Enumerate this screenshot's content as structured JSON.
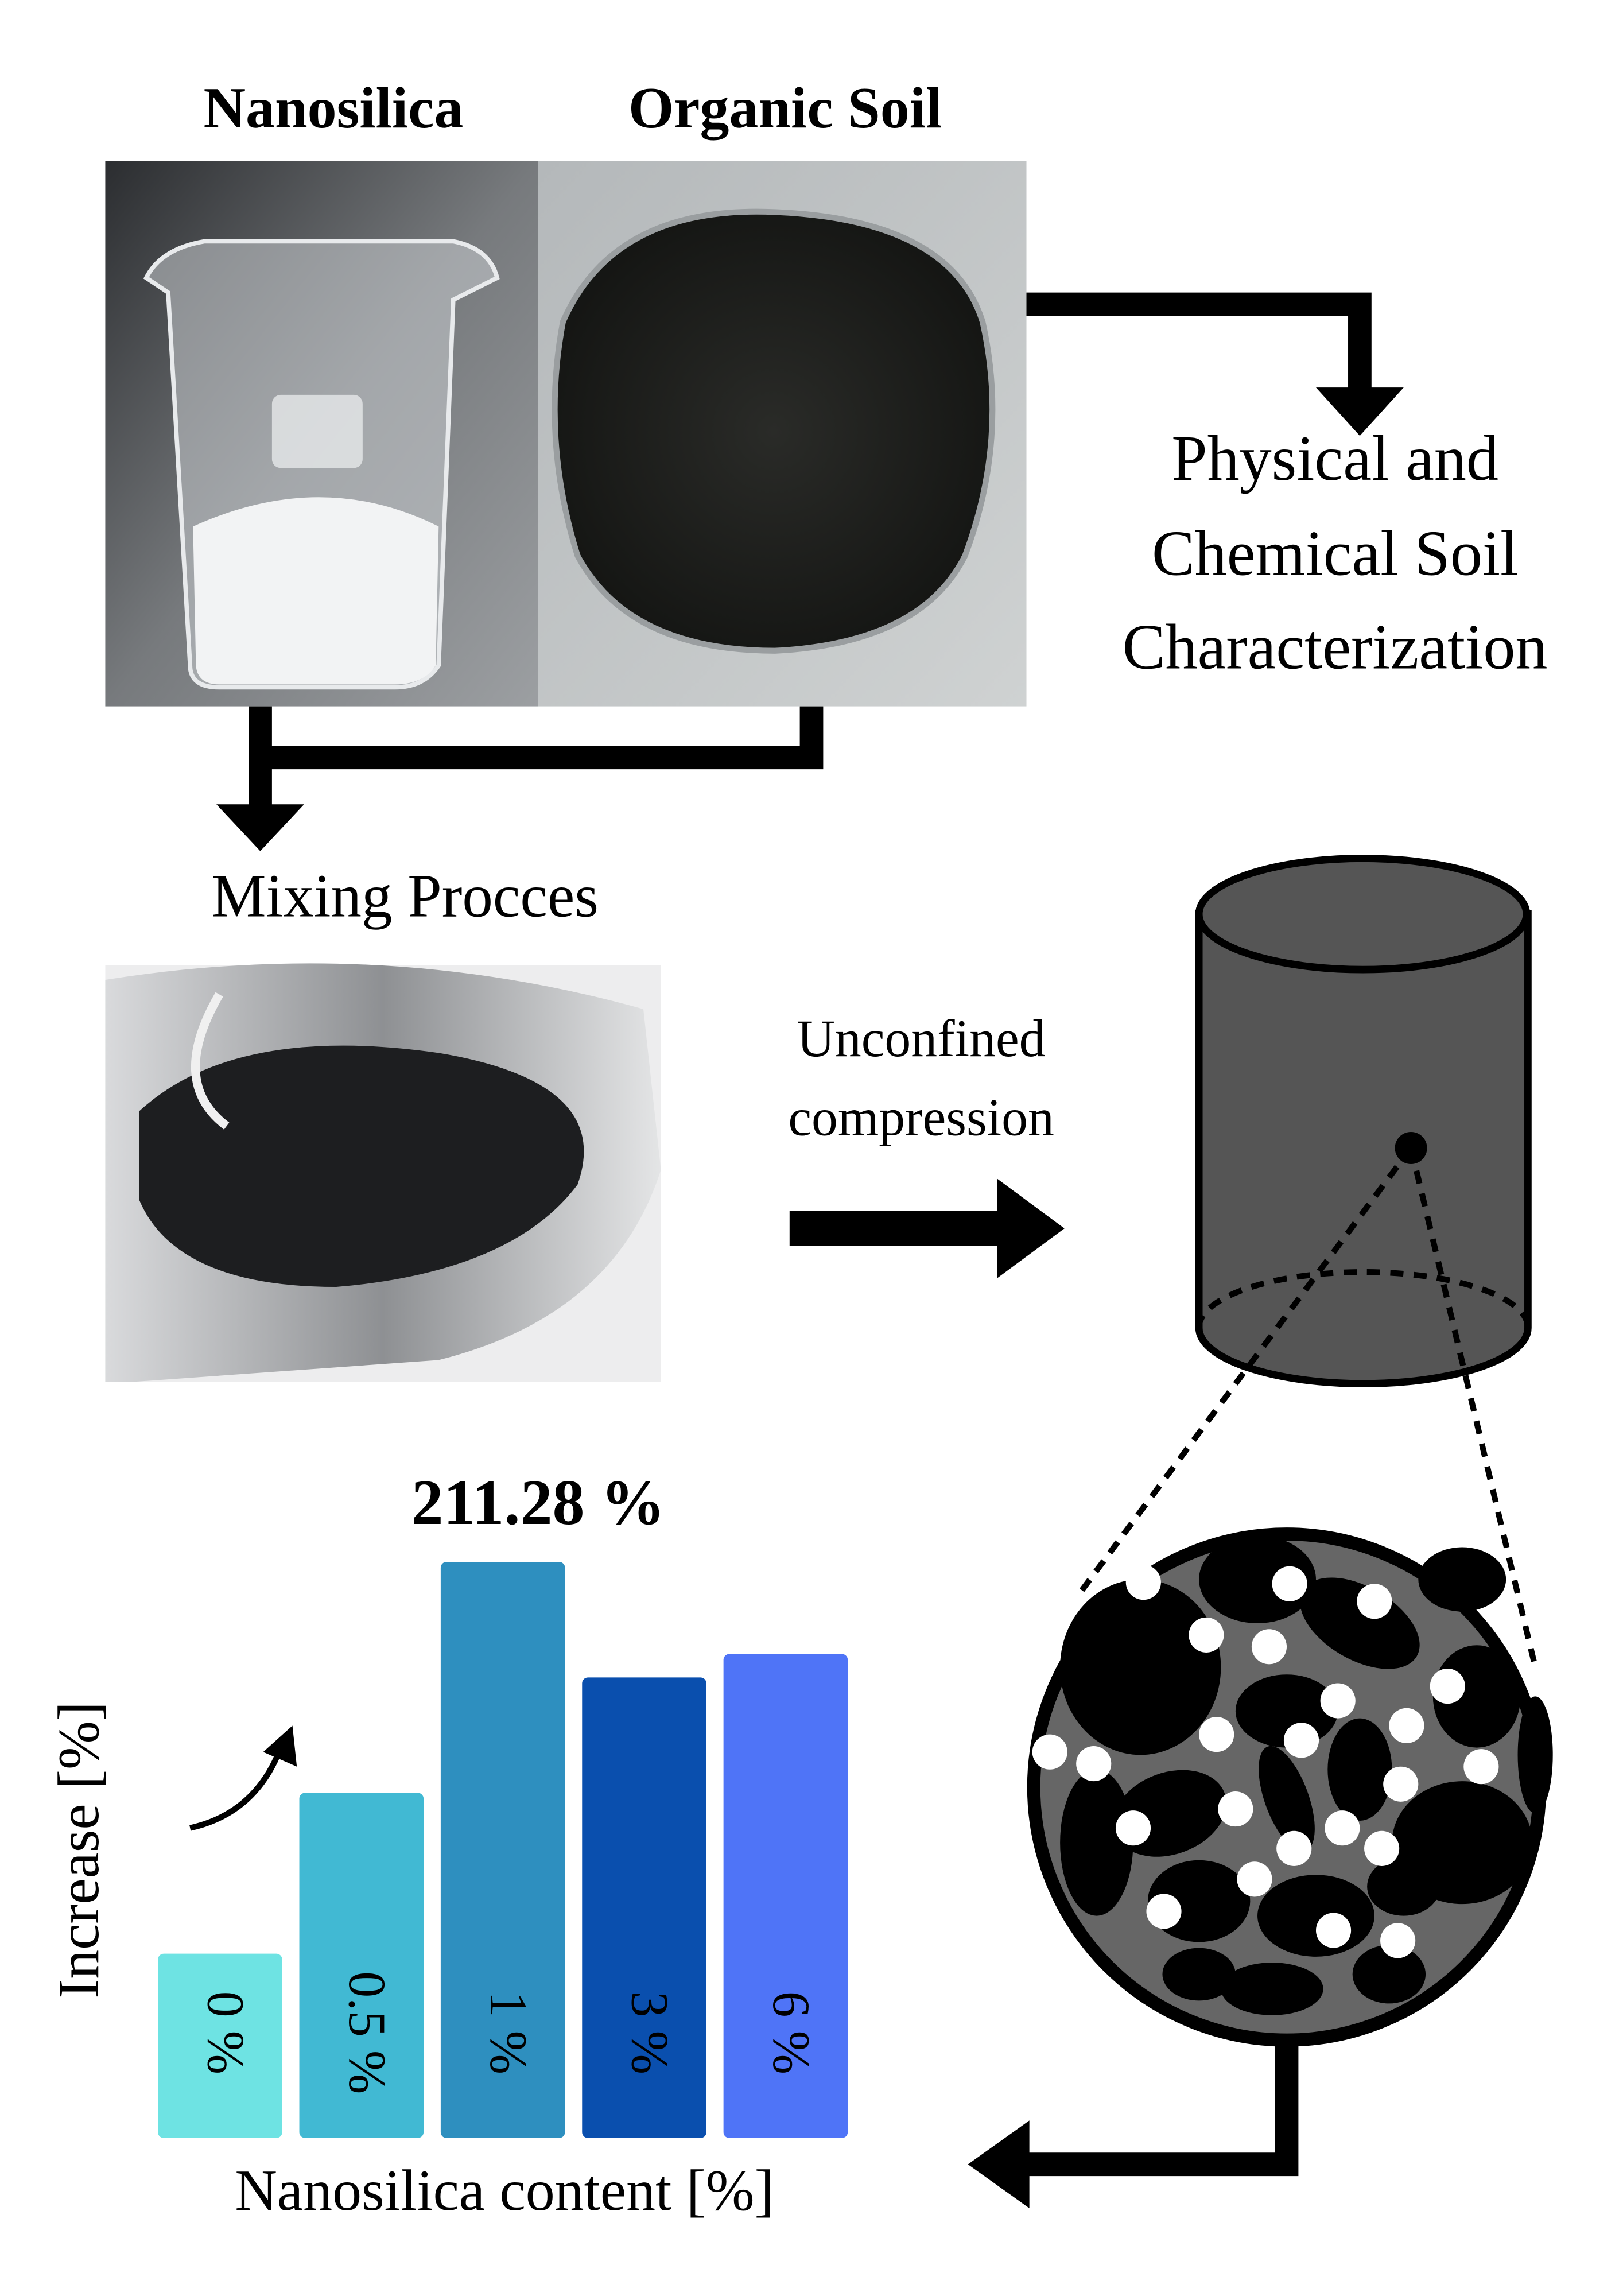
{
  "labels": {
    "nanosilica": "Nanosilica",
    "organic_soil": "Organic Soil",
    "characterization": [
      "Physical and",
      "Chemical Soil",
      "Characterization"
    ],
    "mixing": "Mixing Procces",
    "test": [
      "Unconfined",
      "compression"
    ]
  },
  "chart_data": {
    "type": "bar",
    "annotation": "211.28 %",
    "ylabel": "Increase [%]",
    "xlabel": "Nanosilica content [%]",
    "categories": [
      "0 %",
      "0.5 %",
      "1 %",
      "3 %",
      "6 %"
    ],
    "values": [
      67.6,
      126.6,
      211.28,
      168.9,
      177.5
    ],
    "colors": [
      "#6ee3e3",
      "#41b9d3",
      "#2e8fbf",
      "#0a4fae",
      "#4f74f7"
    ]
  }
}
